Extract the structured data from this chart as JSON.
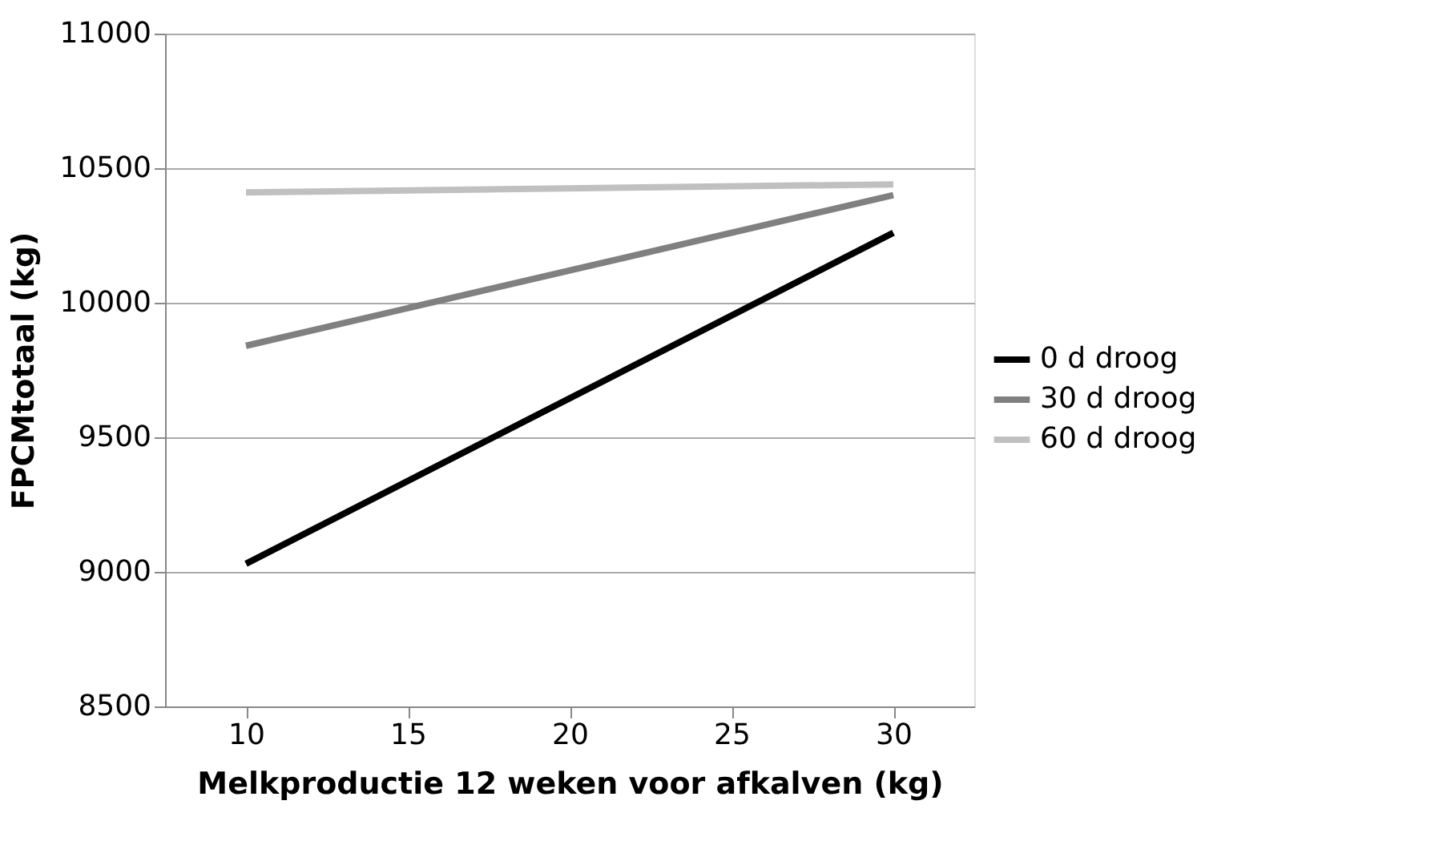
{
  "chart_data": {
    "type": "line",
    "xlabel": "Melkproductie 12 weken voor afkalven (kg)",
    "ylabel": "FPCMtotaal (kg)",
    "x": [
      10,
      30
    ],
    "series": [
      {
        "name": "0 d droog",
        "color": "#000000",
        "values": [
          9030,
          10260
        ]
      },
      {
        "name": "30 d droog",
        "color": "#808080",
        "values": [
          9840,
          10400
        ]
      },
      {
        "name": "60 d droog",
        "color": "#c0c0c0",
        "values": [
          10410,
          10440
        ]
      }
    ],
    "xlim": [
      7.5,
      32.5
    ],
    "xticks": [
      10,
      15,
      20,
      25,
      30
    ],
    "ylim": [
      8500,
      11000
    ],
    "yticks": [
      8500,
      9000,
      9500,
      10000,
      10500,
      11000
    ],
    "grid": "y",
    "legend": "right",
    "marker": "none",
    "line_style": "solid"
  }
}
